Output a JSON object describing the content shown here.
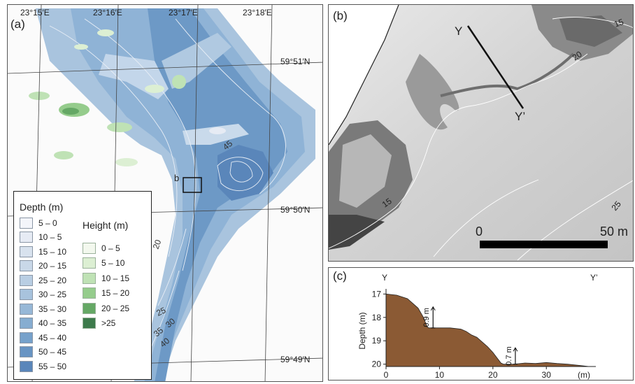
{
  "panel_a": {
    "label": "(a)",
    "lon_labels": [
      "23°15′E",
      "23°16′E",
      "23°17′E",
      "23°18′E"
    ],
    "lat_labels": [
      "59°51′N",
      "59°50′N",
      "59°49′N"
    ],
    "site_label": "b",
    "contour_labels": [
      "45",
      "20",
      "25",
      "35",
      "30",
      "40"
    ],
    "legend": {
      "depth_title": "Depth (m)",
      "depth_classes": [
        {
          "label": "5 – 0",
          "color": "#f3f5fa"
        },
        {
          "label": "10 – 5",
          "color": "#e6ebf4"
        },
        {
          "label": "15 – 10",
          "color": "#d8e2ee"
        },
        {
          "label": "20 – 15",
          "color": "#c9d8e8"
        },
        {
          "label": "25 – 20",
          "color": "#b9cee3"
        },
        {
          "label": "30 – 25",
          "color": "#a8c3dd"
        },
        {
          "label": "35 – 30",
          "color": "#97b8d7"
        },
        {
          "label": "40 – 35",
          "color": "#86add1"
        },
        {
          "label": "45 – 40",
          "color": "#76a1cb"
        },
        {
          "label": "50 – 45",
          "color": "#6894c3"
        },
        {
          "label": "55 – 50",
          "color": "#5a86ba"
        }
      ],
      "height_title": "Height (m)",
      "height_classes": [
        {
          "label": "0 – 5",
          "color": "#f3f8ee"
        },
        {
          "label": "5 – 10",
          "color": "#dcefd3"
        },
        {
          "label": "10 – 15",
          "color": "#bfe2b5"
        },
        {
          "label": "15 – 20",
          "color": "#95cc8c"
        },
        {
          "label": "20 – 25",
          "color": "#65a865"
        },
        {
          "label": ">25",
          "color": "#3d7a4b"
        }
      ]
    }
  },
  "panel_b": {
    "label": "(b)",
    "profile_start": "Y",
    "profile_end": "Y’",
    "contour_labels": [
      "15",
      "20",
      "15",
      "25"
    ],
    "scale_start": "0",
    "scale_end": "50 m"
  },
  "panel_c": {
    "label": "(c)",
    "start_label": "Y",
    "end_label": "Y’",
    "annotations": [
      "0.9 m",
      "0.7 m"
    ],
    "chart_data": {
      "type": "area",
      "ylabel": "Depth (m)",
      "x_unit": "(m)",
      "x_ticks": [
        0,
        10,
        20,
        30
      ],
      "y_ticks": [
        17,
        18,
        19,
        20
      ],
      "xlim": [
        0,
        39
      ],
      "ylim": [
        20.1,
        16.9
      ],
      "y_inverted": true,
      "fill_color": "#8b5a34",
      "x": [
        0,
        2,
        4,
        6,
        7,
        7.7,
        8,
        9,
        12,
        14,
        15,
        16,
        17,
        18,
        19,
        20,
        21,
        21.5,
        22,
        24,
        26,
        28,
        30,
        32,
        34,
        36,
        38
      ],
      "y": [
        17.0,
        17.05,
        17.2,
        17.6,
        18.0,
        18.4,
        18.45,
        18.45,
        18.45,
        18.5,
        18.6,
        18.75,
        18.85,
        19.05,
        19.25,
        19.5,
        19.8,
        19.95,
        20.0,
        20.0,
        19.95,
        19.97,
        19.93,
        19.97,
        20.0,
        20.05,
        20.1
      ]
    }
  }
}
